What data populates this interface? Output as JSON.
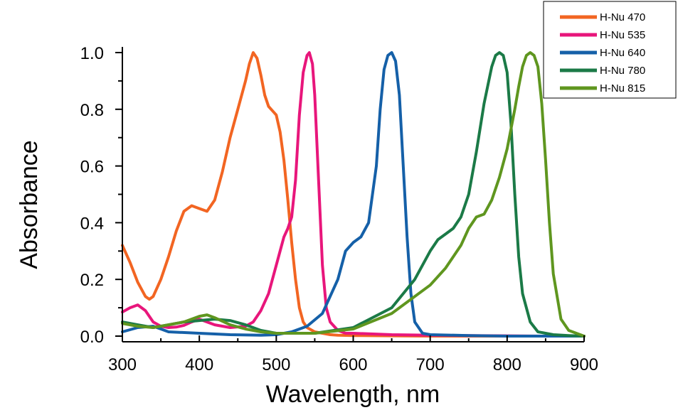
{
  "chart_data": {
    "type": "line",
    "title": "",
    "xlabel": "Wavelength, nm",
    "ylabel": "Absorbance",
    "xlim": [
      300,
      900
    ],
    "ylim": [
      -0.02,
      1.02
    ],
    "xticks": [
      "300",
      "400",
      "500",
      "600",
      "700",
      "800",
      "900"
    ],
    "yticks": [
      "0.0",
      "0.2",
      "0.4",
      "0.6",
      "0.8",
      "1.0"
    ],
    "grid": false,
    "legend_position": "top-right",
    "series": [
      {
        "name": "H-Nu 470",
        "color": "#f26522",
        "x": [
          300,
          310,
          320,
          330,
          335,
          340,
          350,
          360,
          370,
          380,
          390,
          400,
          410,
          420,
          430,
          440,
          450,
          460,
          465,
          470,
          475,
          480,
          485,
          490,
          500,
          505,
          510,
          515,
          520,
          525,
          530,
          535,
          540,
          550,
          560,
          570,
          580,
          600,
          650,
          700,
          750,
          800,
          850,
          900
        ],
        "y": [
          0.32,
          0.26,
          0.19,
          0.14,
          0.13,
          0.14,
          0.2,
          0.28,
          0.37,
          0.44,
          0.46,
          0.45,
          0.44,
          0.48,
          0.58,
          0.7,
          0.8,
          0.9,
          0.96,
          1.0,
          0.98,
          0.92,
          0.85,
          0.81,
          0.78,
          0.72,
          0.62,
          0.48,
          0.33,
          0.2,
          0.1,
          0.05,
          0.03,
          0.015,
          0.01,
          0.005,
          0.003,
          0.002,
          0.001,
          0.0,
          0.0,
          0.0,
          0.0,
          0.0
        ]
      },
      {
        "name": "H-Nu 535",
        "color": "#e8167b",
        "x": [
          300,
          310,
          320,
          330,
          340,
          350,
          360,
          370,
          380,
          390,
          400,
          420,
          440,
          460,
          470,
          480,
          490,
          500,
          505,
          510,
          515,
          520,
          525,
          530,
          535,
          540,
          543,
          547,
          550,
          555,
          560,
          565,
          570,
          580,
          590,
          600,
          650,
          700,
          750,
          800,
          850,
          900
        ],
        "y": [
          0.085,
          0.1,
          0.11,
          0.09,
          0.05,
          0.035,
          0.03,
          0.032,
          0.038,
          0.05,
          0.06,
          0.04,
          0.03,
          0.035,
          0.05,
          0.09,
          0.15,
          0.25,
          0.3,
          0.35,
          0.38,
          0.42,
          0.55,
          0.78,
          0.93,
          0.99,
          1.0,
          0.96,
          0.85,
          0.55,
          0.25,
          0.1,
          0.05,
          0.02,
          0.01,
          0.01,
          0.005,
          0.003,
          0.002,
          0.001,
          0.0,
          0.0
        ]
      },
      {
        "name": "H-Nu 640",
        "color": "#1560a8",
        "x": [
          300,
          320,
          340,
          350,
          360,
          400,
          440,
          480,
          500,
          520,
          540,
          560,
          580,
          590,
          600,
          610,
          620,
          630,
          635,
          640,
          645,
          650,
          655,
          660,
          665,
          670,
          675,
          680,
          690,
          700,
          750,
          800,
          850,
          900
        ],
        "y": [
          0.015,
          0.03,
          0.035,
          0.025,
          0.015,
          0.01,
          0.005,
          0.003,
          0.005,
          0.015,
          0.035,
          0.08,
          0.2,
          0.3,
          0.33,
          0.35,
          0.4,
          0.6,
          0.8,
          0.94,
          0.99,
          1.0,
          0.97,
          0.85,
          0.6,
          0.35,
          0.15,
          0.05,
          0.01,
          0.005,
          0.002,
          0.0,
          0.0,
          0.0
        ]
      },
      {
        "name": "H-Nu 780",
        "color": "#1b7a47",
        "x": [
          300,
          320,
          340,
          360,
          380,
          400,
          420,
          440,
          460,
          480,
          500,
          550,
          600,
          650,
          680,
          700,
          710,
          720,
          730,
          740,
          750,
          760,
          770,
          780,
          785,
          790,
          795,
          800,
          805,
          810,
          815,
          820,
          830,
          840,
          850,
          860,
          880,
          900
        ],
        "y": [
          0.05,
          0.04,
          0.03,
          0.04,
          0.05,
          0.055,
          0.06,
          0.055,
          0.04,
          0.02,
          0.01,
          0.01,
          0.03,
          0.1,
          0.2,
          0.3,
          0.34,
          0.36,
          0.38,
          0.42,
          0.5,
          0.65,
          0.82,
          0.95,
          0.99,
          1.0,
          0.99,
          0.93,
          0.75,
          0.5,
          0.28,
          0.15,
          0.05,
          0.015,
          0.01,
          0.005,
          0.002,
          0.0
        ]
      },
      {
        "name": "H-Nu 815",
        "color": "#5f961f",
        "x": [
          300,
          320,
          340,
          360,
          380,
          400,
          410,
          420,
          440,
          460,
          480,
          500,
          550,
          600,
          650,
          700,
          720,
          740,
          750,
          760,
          770,
          780,
          790,
          800,
          810,
          815,
          820,
          825,
          830,
          835,
          840,
          845,
          850,
          855,
          860,
          870,
          880,
          900
        ],
        "y": [
          0.045,
          0.035,
          0.03,
          0.04,
          0.05,
          0.07,
          0.075,
          0.065,
          0.04,
          0.025,
          0.015,
          0.01,
          0.01,
          0.025,
          0.08,
          0.18,
          0.24,
          0.32,
          0.38,
          0.42,
          0.43,
          0.48,
          0.56,
          0.66,
          0.8,
          0.88,
          0.95,
          0.99,
          1.0,
          0.99,
          0.95,
          0.82,
          0.62,
          0.4,
          0.22,
          0.06,
          0.02,
          0.0
        ]
      }
    ]
  }
}
